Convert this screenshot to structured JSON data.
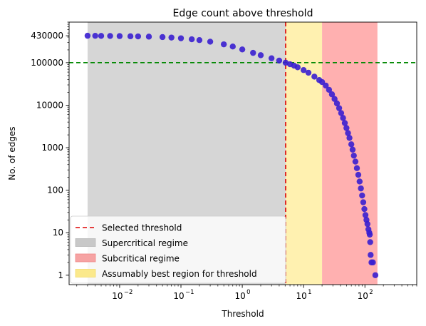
{
  "chart_data": {
    "type": "scatter",
    "title": "Edge count above threshold",
    "xlabel": "Threshold",
    "ylabel": "No. of edges",
    "xscale": "log",
    "yscale": "log",
    "xlim": [
      0.0015,
      700
    ],
    "ylim": [
      0.6,
      900000
    ],
    "x_ticks": [
      {
        "value": 0.01,
        "base": "10",
        "exp": "−2"
      },
      {
        "value": 0.1,
        "base": "10",
        "exp": "−1"
      },
      {
        "value": 1,
        "base": "10",
        "exp": "0"
      },
      {
        "value": 10,
        "base": "10",
        "exp": "1"
      },
      {
        "value": 100,
        "base": "10",
        "exp": "2"
      }
    ],
    "y_ticks": [
      {
        "value": 430000,
        "label": "430000"
      },
      {
        "value": 100000,
        "label": "100000"
      },
      {
        "value": 10000,
        "label": "10000"
      },
      {
        "value": 1000,
        "label": "1000"
      },
      {
        "value": 100,
        "label": "100"
      },
      {
        "value": 10,
        "label": "10"
      },
      {
        "value": 1,
        "label": "1"
      }
    ],
    "grid": false,
    "legend_position": "lower-left",
    "regions": [
      {
        "name": "Supercritical regime",
        "x_from": 0.003,
        "x_to": 5.1,
        "color": "#d6d6d6",
        "opacity": 1
      },
      {
        "name": "Assumably best region for threshold",
        "x_from": 5.1,
        "x_to": 20,
        "color": "#fff1b0",
        "opacity": 1
      },
      {
        "name": "Subcritical regime",
        "x_from": 20,
        "x_to": 160,
        "color": "#ffb0b0",
        "opacity": 1
      }
    ],
    "vlines": [
      {
        "name": "Selected threshold",
        "x": 5.1,
        "color": "#dd0000",
        "style": "dashed"
      }
    ],
    "hlines": [
      {
        "y": 100000,
        "color": "#008800",
        "style": "dashed"
      }
    ],
    "legend": [
      {
        "label": "Selected threshold",
        "kind": "dashed-line",
        "color": "#dd0000"
      },
      {
        "label": "Supercritical regime",
        "kind": "patch",
        "color": "#c8c8c8",
        "edge": "#b8b8b8"
      },
      {
        "label": "Subcritical regime",
        "kind": "patch",
        "color": "#f6a3a3",
        "edge": "#ef8888"
      },
      {
        "label": "Assumably best region for threshold",
        "kind": "patch",
        "color": "#fbe98c",
        "edge": "#f2dc70"
      }
    ],
    "series": [
      {
        "points": [
          [
            0.003,
            430000
          ],
          [
            0.004,
            429000
          ],
          [
            0.005,
            427000
          ],
          [
            0.007,
            425000
          ],
          [
            0.01,
            422000
          ],
          [
            0.015,
            418000
          ],
          [
            0.02,
            415000
          ],
          [
            0.03,
            410000
          ],
          [
            0.05,
            400000
          ],
          [
            0.07,
            390000
          ],
          [
            0.1,
            375000
          ],
          [
            0.15,
            355000
          ],
          [
            0.2,
            340000
          ],
          [
            0.3,
            312000
          ],
          [
            0.5,
            270000
          ],
          [
            0.7,
            240000
          ],
          [
            1.0,
            205000
          ],
          [
            1.5,
            170000
          ],
          [
            2.0,
            150000
          ],
          [
            3.0,
            127000
          ],
          [
            4.0,
            112000
          ],
          [
            5.1,
            100000
          ],
          [
            6.0,
            92000
          ],
          [
            7.0,
            85000
          ],
          [
            8.0,
            78000
          ],
          [
            10.0,
            67000
          ],
          [
            12.0,
            58000
          ],
          [
            15.0,
            47000
          ],
          [
            18.0,
            39000
          ],
          [
            20.0,
            35000
          ],
          [
            23.0,
            29000
          ],
          [
            26.0,
            23000
          ],
          [
            29.0,
            18000
          ],
          [
            32.0,
            14000
          ],
          [
            35.0,
            11000
          ],
          [
            38.0,
            8500
          ],
          [
            41.0,
            6500
          ],
          [
            44.0,
            5000
          ],
          [
            47.0,
            3800
          ],
          [
            50.0,
            2900
          ],
          [
            53.0,
            2200
          ],
          [
            56.0,
            1700
          ],
          [
            60.0,
            1200
          ],
          [
            63.0,
            900
          ],
          [
            66.0,
            650
          ],
          [
            70.0,
            470
          ],
          [
            74.0,
            330
          ],
          [
            78.0,
            230
          ],
          [
            82.0,
            160
          ],
          [
            86.0,
            110
          ],
          [
            90.0,
            75
          ],
          [
            94.0,
            52
          ],
          [
            98.0,
            36
          ],
          [
            102.0,
            26
          ],
          [
            106.0,
            20
          ],
          [
            110.0,
            16
          ],
          [
            114.0,
            12
          ],
          [
            118.0,
            10
          ],
          [
            120.0,
            9
          ],
          [
            122.0,
            6
          ],
          [
            124.0,
            3
          ],
          [
            128.0,
            2
          ],
          [
            135.0,
            2
          ],
          [
            148.0,
            1
          ]
        ]
      }
    ]
  }
}
